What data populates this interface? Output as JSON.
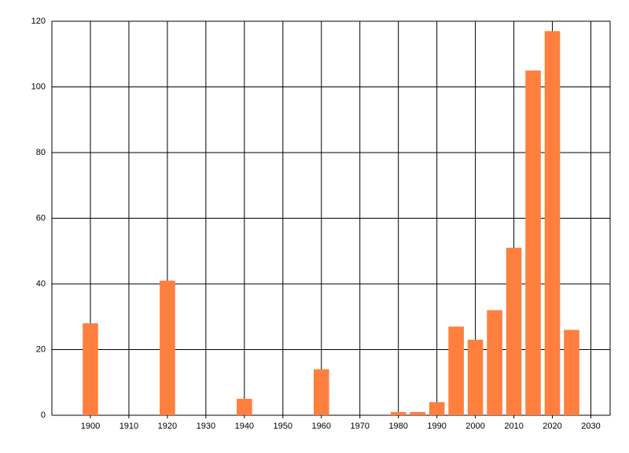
{
  "chart_data": {
    "type": "bar",
    "x": [
      1900,
      1920,
      1940,
      1960,
      1980,
      1985,
      1990,
      1995,
      2000,
      2005,
      2010,
      2015,
      2020,
      2025
    ],
    "values": [
      28,
      41,
      5,
      14,
      1,
      1,
      4,
      27,
      23,
      32,
      51,
      105,
      117,
      26
    ],
    "color": "#ff7f3f",
    "xlim": [
      1890,
      2035
    ],
    "xticks": [
      1900,
      1910,
      1920,
      1930,
      1940,
      1950,
      1960,
      1970,
      1980,
      1990,
      2000,
      2010,
      2020,
      2030
    ],
    "ylim": [
      0,
      120
    ],
    "yticks": [
      0,
      20,
      40,
      60,
      80,
      100,
      120
    ],
    "grid": true
  }
}
